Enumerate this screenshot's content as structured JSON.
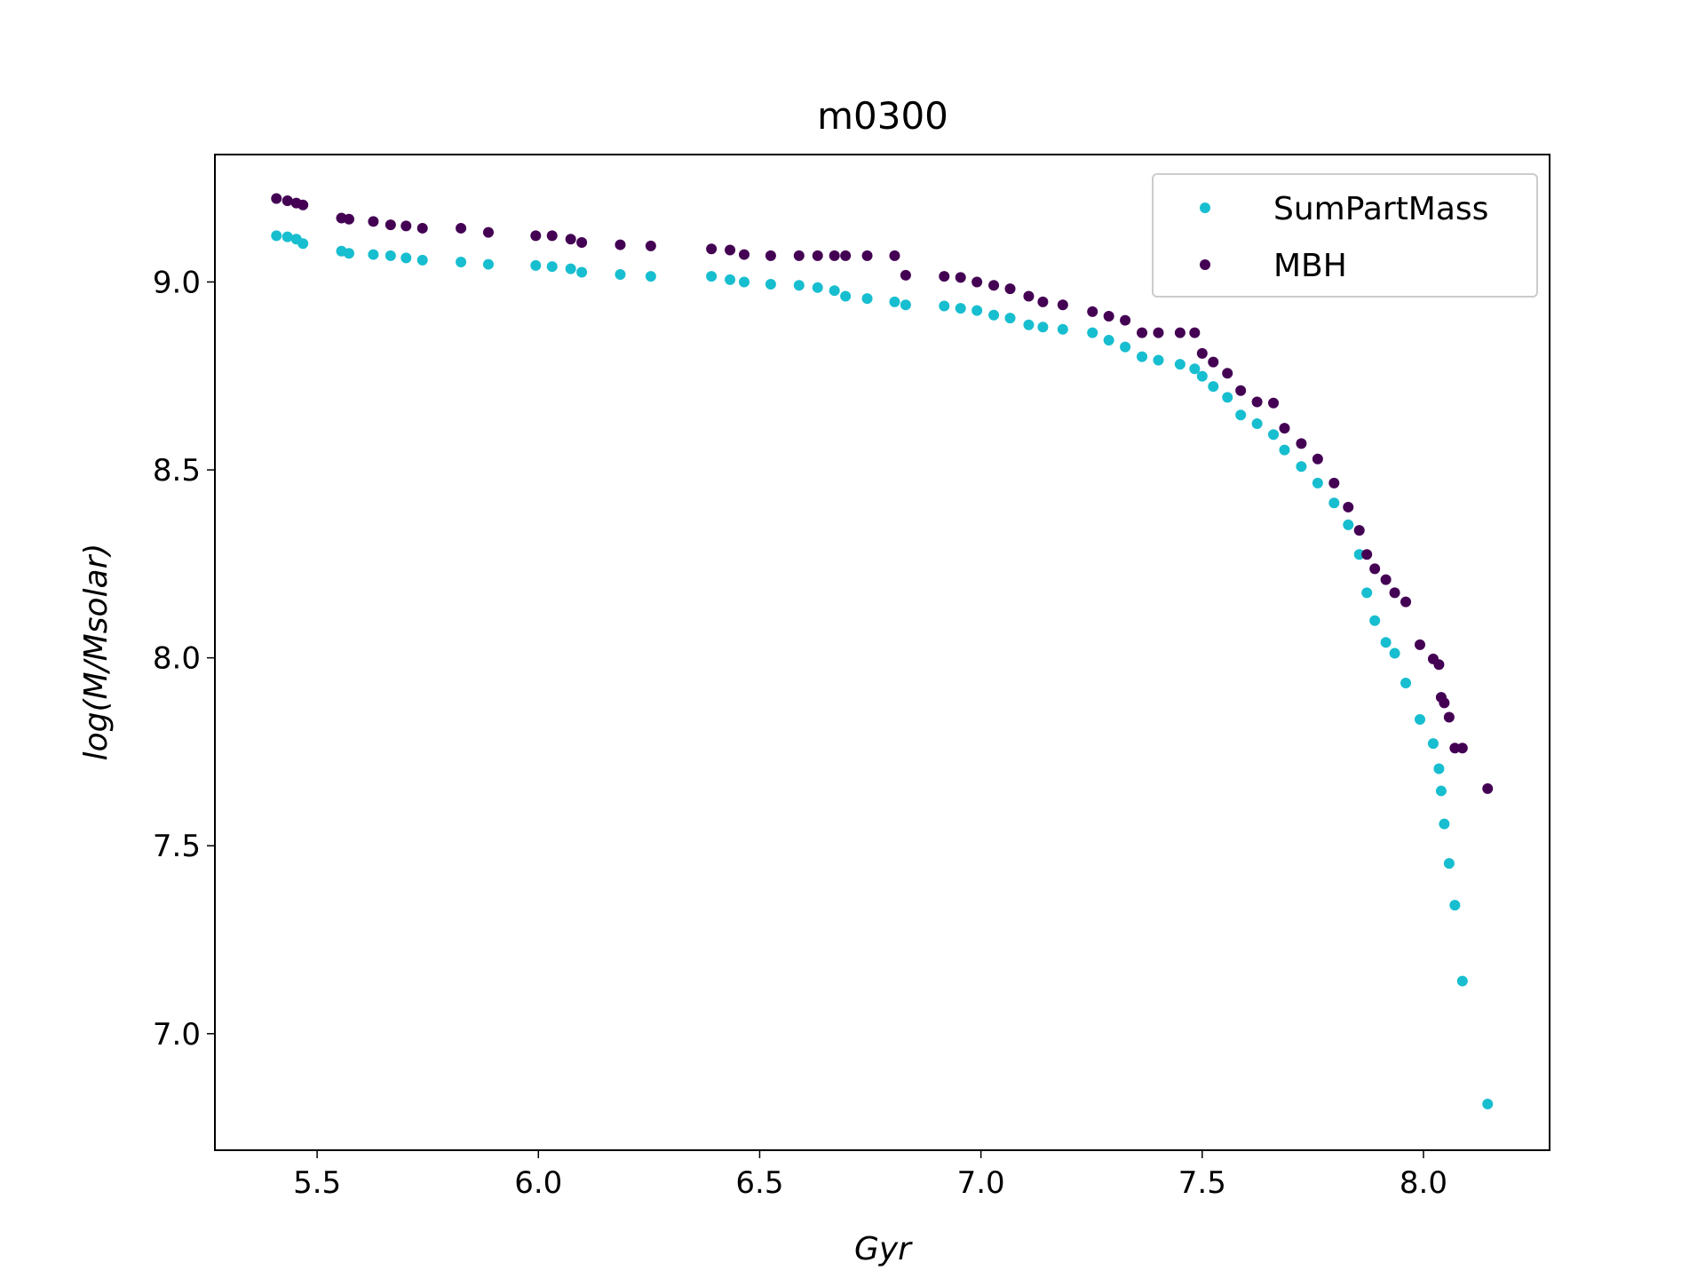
{
  "chart_data": {
    "type": "scatter",
    "title": "m0300",
    "x_label": "Gyr",
    "y_label": "log(M/Msolar)",
    "legend": "upper right",
    "xlim": [
      5.269,
      8.285
    ],
    "ylim": [
      6.69,
      9.339
    ],
    "xticks": [
      {
        "value": 5.5,
        "label": "5.5"
      },
      {
        "value": 6.0,
        "label": "6.0"
      },
      6.5,
      {
        "value": 7.0,
        "label": "7.0"
      },
      7.5,
      {
        "value": 8.0,
        "label": "8.0"
      }
    ],
    "yticks": [
      {
        "value": 7.0,
        "label": "7.0"
      },
      7.5,
      {
        "value": 8.0,
        "label": "8.0"
      },
      8.5,
      {
        "value": 9.0,
        "label": "9.0"
      }
    ],
    "x": [
      5.408,
      5.433,
      5.453,
      5.468,
      5.555,
      5.572,
      5.627,
      5.666,
      5.701,
      5.738,
      5.825,
      5.887,
      5.994,
      6.031,
      6.073,
      6.098,
      6.185,
      6.254,
      6.391,
      6.433,
      6.465,
      6.525,
      6.589,
      6.631,
      6.669,
      6.694,
      6.743,
      6.805,
      6.83,
      6.917,
      6.954,
      6.991,
      7.029,
      7.066,
      7.108,
      7.14,
      7.185,
      7.252,
      7.289,
      7.326,
      7.364,
      7.401,
      7.45,
      7.483,
      7.5,
      7.525,
      7.557,
      7.587,
      7.624,
      7.661,
      7.686,
      7.724,
      7.761,
      7.798,
      7.83,
      7.855,
      7.872,
      7.89,
      7.915,
      7.935,
      7.96,
      7.992,
      8.022,
      8.035,
      8.04,
      8.047,
      8.058,
      8.071,
      8.088,
      8.145
    ],
    "series": [
      {
        "name": "SumPartMass",
        "color": "#17becf",
        "values": [
          9.123,
          9.12,
          9.114,
          9.102,
          9.082,
          9.076,
          9.073,
          9.07,
          9.064,
          9.058,
          9.053,
          9.047,
          9.044,
          9.041,
          9.035,
          9.026,
          9.02,
          9.015,
          9.015,
          9.006,
          9.0,
          8.994,
          8.991,
          8.985,
          8.977,
          8.962,
          8.956,
          8.947,
          8.939,
          8.936,
          8.93,
          8.924,
          8.912,
          8.904,
          8.886,
          8.88,
          8.874,
          8.865,
          8.845,
          8.827,
          8.801,
          8.792,
          8.781,
          8.769,
          8.749,
          8.722,
          8.693,
          8.646,
          8.623,
          8.594,
          8.553,
          8.509,
          8.465,
          8.412,
          8.354,
          8.275,
          8.173,
          8.099,
          8.041,
          8.012,
          7.933,
          7.836,
          7.772,
          7.705,
          7.646,
          7.558,
          7.453,
          7.342,
          7.14,
          6.813
        ]
      },
      {
        "name": "MBH",
        "color": "#440154",
        "values": [
          9.222,
          9.216,
          9.21,
          9.205,
          9.17,
          9.167,
          9.161,
          9.152,
          9.149,
          9.143,
          9.143,
          9.132,
          9.123,
          9.123,
          9.114,
          9.105,
          9.099,
          9.096,
          9.088,
          9.085,
          9.073,
          9.07,
          9.07,
          9.07,
          9.07,
          9.07,
          9.07,
          9.07,
          9.018,
          9.015,
          9.012,
          9.0,
          8.991,
          8.982,
          8.962,
          8.947,
          8.939,
          8.921,
          8.909,
          8.898,
          8.865,
          8.865,
          8.865,
          8.865,
          8.81,
          8.787,
          8.757,
          8.711,
          8.681,
          8.678,
          8.611,
          8.57,
          8.529,
          8.465,
          8.401,
          8.339,
          8.275,
          8.237,
          8.208,
          8.173,
          8.149,
          8.035,
          7.997,
          7.982,
          7.895,
          7.88,
          7.842,
          7.76,
          7.76,
          7.652
        ]
      }
    ]
  }
}
